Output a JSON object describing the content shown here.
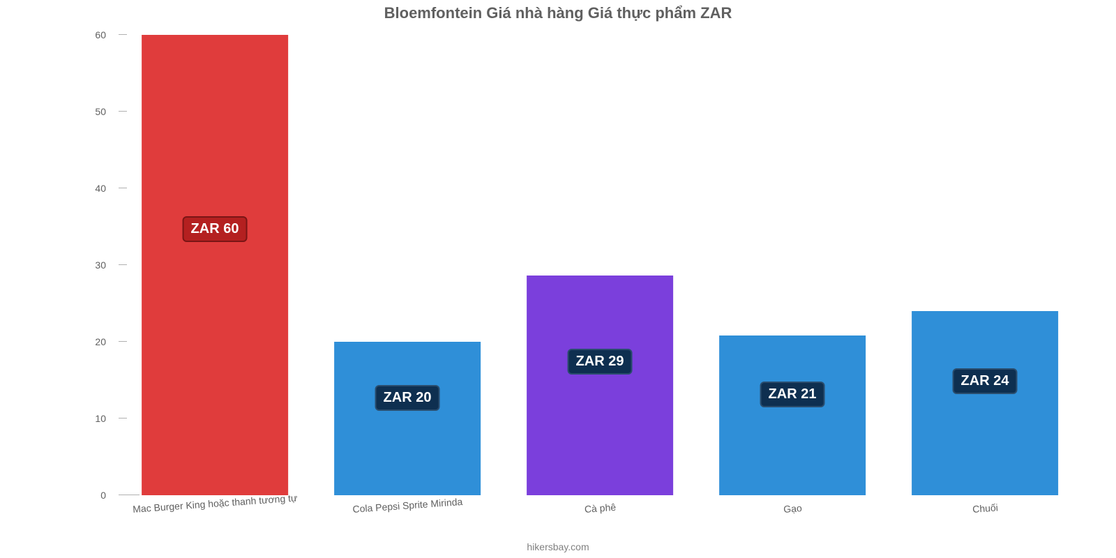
{
  "chart": {
    "type": "bar",
    "title": "Bloemfontein Giá nhà hàng Giá thực phẩm ZAR",
    "title_fontsize": 22,
    "title_color": "#606060",
    "attribution": "hikersbay.com",
    "attribution_fontsize": 14,
    "attribution_color": "#808080",
    "background_color": "#ffffff",
    "y_axis": {
      "min": 0,
      "max": 60,
      "tick_step": 10,
      "ticks": [
        0,
        10,
        20,
        30,
        40,
        50,
        60
      ],
      "tick_fontsize": 14,
      "tick_color": "#606060",
      "tick_line_color": "#b0b0b0",
      "baseline_color": "#b0b0b0",
      "baseline_width_pct": 2.2
    },
    "x_axis": {
      "label_fontsize": 14,
      "label_color": "#606060",
      "label_rotation_deg": -4
    },
    "bar_width_pct": 76,
    "slot_count": 5,
    "badge": {
      "bg_color": "#0e2f50",
      "text_color": "#ffffff",
      "border_color": "#2a4d6e",
      "fontsize": 20
    },
    "badge_first": {
      "bg_color": "#b42020",
      "text_color": "#ffffff",
      "border_color": "#7a1515",
      "fontsize": 20
    },
    "bars": [
      {
        "category": "Mac Burger King hoặc thanh tương tự",
        "value": 60,
        "label": "ZAR 60",
        "color": "#e03c3c",
        "badge_variant": "first"
      },
      {
        "category": "Cola Pepsi Sprite Mirinda",
        "value": 20,
        "label": "ZAR 20",
        "color": "#2f8fd8",
        "badge_variant": "default"
      },
      {
        "category": "Cà phê",
        "value": 28.6,
        "label": "ZAR 29",
        "color": "#7b3fdc",
        "badge_variant": "default"
      },
      {
        "category": "Gạo",
        "value": 20.8,
        "label": "ZAR 21",
        "color": "#2f8fd8",
        "badge_variant": "default"
      },
      {
        "category": "Chuối",
        "value": 24,
        "label": "ZAR 24",
        "color": "#2f8fd8",
        "badge_variant": "default"
      }
    ]
  }
}
